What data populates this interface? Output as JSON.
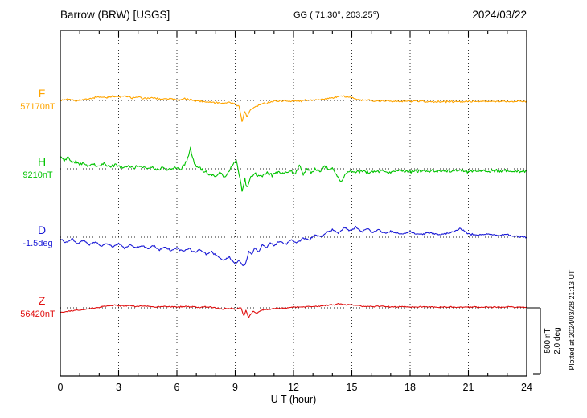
{
  "header": {
    "station_title": "Barrow (BRW)  [USGS]",
    "geo_coords": "GG ( 71.30°, 203.25°)",
    "date": "2024/03/22"
  },
  "axes": {
    "xlabel": "U T (hour)",
    "x_ticks": [
      0,
      3,
      6,
      9,
      12,
      15,
      18,
      21,
      24
    ],
    "x_minor_step": 1,
    "x_range": [
      0,
      24
    ]
  },
  "scale_bar": {
    "nt_label": "500 nT",
    "deg_label": "2.0 deg"
  },
  "footer_note": "Plotted at 2024/03/28 21:13 UT",
  "chart_data": {
    "type": "line",
    "title": "Barrow (BRW) [USGS] magnetogram 2024/03/22",
    "xlabel": "U T (hour)",
    "x_range": [
      0,
      24
    ],
    "grid": "dotted vertical every 3 h, dotted baseline per trace",
    "scale": {
      "nT_per_div": 500,
      "deg_per_div": 2.0
    },
    "series": [
      {
        "name": "F",
        "units": "nT",
        "baseline_value": 57170,
        "baseline_label": "57170nT",
        "color": "#FFA500",
        "points": [
          [
            0,
            0
          ],
          [
            0.4,
            6
          ],
          [
            0.8,
            -2
          ],
          [
            1.2,
            8
          ],
          [
            1.6,
            18
          ],
          [
            2,
            28
          ],
          [
            2.4,
            22
          ],
          [
            2.7,
            34
          ],
          [
            3,
            26
          ],
          [
            3.3,
            32
          ],
          [
            3.7,
            20
          ],
          [
            4,
            24
          ],
          [
            4.4,
            14
          ],
          [
            4.8,
            20
          ],
          [
            5.2,
            10
          ],
          [
            5.6,
            16
          ],
          [
            6,
            6
          ],
          [
            6.4,
            12
          ],
          [
            6.8,
            2
          ],
          [
            7.2,
            -6
          ],
          [
            7.6,
            -12
          ],
          [
            8,
            -16
          ],
          [
            8.4,
            -20
          ],
          [
            8.7,
            -14
          ],
          [
            9,
            -28
          ],
          [
            9.2,
            -45
          ],
          [
            9.35,
            -160
          ],
          [
            9.5,
            -85
          ],
          [
            9.6,
            -125
          ],
          [
            9.8,
            -70
          ],
          [
            10,
            -48
          ],
          [
            10.3,
            -30
          ],
          [
            10.7,
            -16
          ],
          [
            11,
            -8
          ],
          [
            11.5,
            -2
          ],
          [
            12,
            -6
          ],
          [
            12.5,
            -2
          ],
          [
            13,
            4
          ],
          [
            13.5,
            6
          ],
          [
            14,
            20
          ],
          [
            14.4,
            32
          ],
          [
            14.8,
            28
          ],
          [
            15.2,
            12
          ],
          [
            15.6,
            2
          ],
          [
            16,
            -2
          ],
          [
            16.5,
            -6
          ],
          [
            17,
            -5
          ],
          [
            17.5,
            -8
          ],
          [
            18,
            -7
          ],
          [
            19,
            -9
          ],
          [
            20,
            -10
          ],
          [
            21,
            -8
          ],
          [
            22,
            -9
          ],
          [
            23,
            -8
          ],
          [
            24,
            -8
          ]
        ]
      },
      {
        "name": "H",
        "units": "nT",
        "baseline_value": 9210,
        "baseline_label": "9210nT",
        "color": "#00C300",
        "points": [
          [
            0,
            95
          ],
          [
            0.2,
            60
          ],
          [
            0.4,
            85
          ],
          [
            0.6,
            50
          ],
          [
            0.8,
            60
          ],
          [
            1,
            30
          ],
          [
            1.2,
            48
          ],
          [
            1.4,
            22
          ],
          [
            1.7,
            35
          ],
          [
            2,
            22
          ],
          [
            2.3,
            42
          ],
          [
            2.6,
            18
          ],
          [
            2.9,
            32
          ],
          [
            3.2,
            10
          ],
          [
            3.5,
            26
          ],
          [
            3.8,
            8
          ],
          [
            4.1,
            22
          ],
          [
            4.4,
            2
          ],
          [
            4.7,
            18
          ],
          [
            5,
            -4
          ],
          [
            5.3,
            12
          ],
          [
            5.6,
            -6
          ],
          [
            5.9,
            8
          ],
          [
            6.2,
            -8
          ],
          [
            6.5,
            55
          ],
          [
            6.7,
            150
          ],
          [
            6.9,
            35
          ],
          [
            7.1,
            15
          ],
          [
            7.4,
            -18
          ],
          [
            7.7,
            -40
          ],
          [
            8,
            -60
          ],
          [
            8.2,
            -28
          ],
          [
            8.45,
            -68
          ],
          [
            8.7,
            -18
          ],
          [
            8.9,
            40
          ],
          [
            9.05,
            60
          ],
          [
            9.2,
            -35
          ],
          [
            9.35,
            -175
          ],
          [
            9.5,
            -80
          ],
          [
            9.62,
            -150
          ],
          [
            9.8,
            -65
          ],
          [
            10,
            -42
          ],
          [
            10.3,
            -62
          ],
          [
            10.6,
            -30
          ],
          [
            10.9,
            -48
          ],
          [
            11.2,
            -22
          ],
          [
            11.5,
            -42
          ],
          [
            11.8,
            -15
          ],
          [
            12.1,
            -35
          ],
          [
            12.3,
            18
          ],
          [
            12.5,
            -45
          ],
          [
            12.7,
            8
          ],
          [
            12.9,
            -32
          ],
          [
            13.1,
            -2
          ],
          [
            13.4,
            -25
          ],
          [
            13.6,
            28
          ],
          [
            13.8,
            -12
          ],
          [
            14,
            8
          ],
          [
            14.25,
            -55
          ],
          [
            14.45,
            -105
          ],
          [
            14.65,
            -35
          ],
          [
            14.9,
            -18
          ],
          [
            15.2,
            -28
          ],
          [
            15.5,
            -18
          ],
          [
            16,
            -26
          ],
          [
            16.5,
            -16
          ],
          [
            17,
            -24
          ],
          [
            17.5,
            -14
          ],
          [
            18,
            -22
          ],
          [
            18.5,
            -14
          ],
          [
            19,
            -20
          ],
          [
            19.5,
            -14
          ],
          [
            20,
            -20
          ],
          [
            20.5,
            -14
          ],
          [
            21,
            -19
          ],
          [
            21.5,
            -15
          ],
          [
            22,
            -18
          ],
          [
            22.5,
            -14
          ],
          [
            23,
            -18
          ],
          [
            23.5,
            -15
          ],
          [
            24,
            -16
          ]
        ]
      },
      {
        "name": "D",
        "units": "deg",
        "baseline_value": -1.5,
        "baseline_label": "-1.5deg",
        "color": "#1A1AD6",
        "points": [
          [
            0,
            -0.05
          ],
          [
            0.3,
            -0.16
          ],
          [
            0.6,
            -0.06
          ],
          [
            0.9,
            -0.2
          ],
          [
            1.2,
            -0.1
          ],
          [
            1.5,
            -0.24
          ],
          [
            1.8,
            -0.14
          ],
          [
            2.1,
            -0.28
          ],
          [
            2.4,
            -0.18
          ],
          [
            2.7,
            -0.3
          ],
          [
            3,
            -0.2
          ],
          [
            3.3,
            -0.33
          ],
          [
            3.6,
            -0.22
          ],
          [
            3.9,
            -0.34
          ],
          [
            4.2,
            -0.24
          ],
          [
            4.5,
            -0.36
          ],
          [
            4.8,
            -0.26
          ],
          [
            5.1,
            -0.4
          ],
          [
            5.4,
            -0.3
          ],
          [
            5.7,
            -0.42
          ],
          [
            6,
            -0.32
          ],
          [
            6.3,
            -0.44
          ],
          [
            6.6,
            -0.34
          ],
          [
            6.9,
            -0.46
          ],
          [
            7.2,
            -0.38
          ],
          [
            7.5,
            -0.52
          ],
          [
            7.8,
            -0.44
          ],
          [
            8.1,
            -0.6
          ],
          [
            8.4,
            -0.7
          ],
          [
            8.7,
            -0.62
          ],
          [
            9,
            -0.8
          ],
          [
            9.2,
            -0.72
          ],
          [
            9.4,
            -0.88
          ],
          [
            9.55,
            -0.78
          ],
          [
            9.7,
            -0.42
          ],
          [
            9.85,
            -0.55
          ],
          [
            10,
            -0.32
          ],
          [
            10.2,
            -0.46
          ],
          [
            10.4,
            -0.22
          ],
          [
            10.6,
            -0.32
          ],
          [
            10.8,
            -0.16
          ],
          [
            11,
            -0.26
          ],
          [
            11.3,
            -0.12
          ],
          [
            11.6,
            -0.22
          ],
          [
            11.9,
            -0.08
          ],
          [
            12.2,
            -0.16
          ],
          [
            12.5,
            -0.02
          ],
          [
            12.8,
            -0.1
          ],
          [
            13.1,
            0.08
          ],
          [
            13.4,
            0.0
          ],
          [
            13.7,
            0.14
          ],
          [
            14,
            0.24
          ],
          [
            14.3,
            0.12
          ],
          [
            14.6,
            0.28
          ],
          [
            14.9,
            0.18
          ],
          [
            15.2,
            0.3
          ],
          [
            15.5,
            0.16
          ],
          [
            15.8,
            0.26
          ],
          [
            16.1,
            0.14
          ],
          [
            16.4,
            0.22
          ],
          [
            16.7,
            0.12
          ],
          [
            17,
            0.18
          ],
          [
            17.5,
            0.1
          ],
          [
            18,
            0.16
          ],
          [
            18.5,
            0.08
          ],
          [
            19,
            0.14
          ],
          [
            19.5,
            0.08
          ],
          [
            20,
            0.12
          ],
          [
            20.3,
            0.2
          ],
          [
            20.6,
            0.26
          ],
          [
            21,
            0.1
          ],
          [
            21.5,
            0.06
          ],
          [
            22,
            0.1
          ],
          [
            22.5,
            0.04
          ],
          [
            23,
            0.08
          ],
          [
            23.5,
            0.02
          ],
          [
            24,
            0.0
          ]
        ]
      },
      {
        "name": "Z",
        "units": "nT",
        "baseline_value": 56420,
        "baseline_label": "56420nT",
        "color": "#E01010",
        "points": [
          [
            0,
            -32
          ],
          [
            0.5,
            -26
          ],
          [
            1,
            -16
          ],
          [
            1.5,
            -6
          ],
          [
            2,
            4
          ],
          [
            2.5,
            14
          ],
          [
            2.8,
            20
          ],
          [
            3.1,
            14
          ],
          [
            3.5,
            18
          ],
          [
            4,
            10
          ],
          [
            4.5,
            13
          ],
          [
            5,
            8
          ],
          [
            5.5,
            11
          ],
          [
            6,
            7
          ],
          [
            6.5,
            10
          ],
          [
            7,
            5
          ],
          [
            7.5,
            8
          ],
          [
            8,
            0
          ],
          [
            8.3,
            -10
          ],
          [
            8.6,
            -4
          ],
          [
            9,
            -9
          ],
          [
            9.3,
            -2
          ],
          [
            9.45,
            -62
          ],
          [
            9.55,
            -18
          ],
          [
            9.7,
            -72
          ],
          [
            9.9,
            -28
          ],
          [
            10.1,
            -38
          ],
          [
            10.4,
            -16
          ],
          [
            10.7,
            -10
          ],
          [
            11,
            -6
          ],
          [
            11.5,
            -1
          ],
          [
            12,
            4
          ],
          [
            12.5,
            7
          ],
          [
            13,
            10
          ],
          [
            13.5,
            14
          ],
          [
            14,
            24
          ],
          [
            14.4,
            30
          ],
          [
            14.8,
            24
          ],
          [
            15.2,
            18
          ],
          [
            15.6,
            13
          ],
          [
            16,
            10
          ],
          [
            16.5,
            10
          ],
          [
            17,
            8
          ],
          [
            17.5,
            9
          ],
          [
            18,
            7
          ],
          [
            18.5,
            8
          ],
          [
            19,
            7
          ],
          [
            19.5,
            6
          ],
          [
            20,
            7
          ],
          [
            20.5,
            6
          ],
          [
            21,
            7
          ],
          [
            21.5,
            6
          ],
          [
            22,
            6
          ],
          [
            22.5,
            5
          ],
          [
            23,
            6
          ],
          [
            23.5,
            5
          ],
          [
            24,
            5
          ]
        ]
      }
    ]
  }
}
